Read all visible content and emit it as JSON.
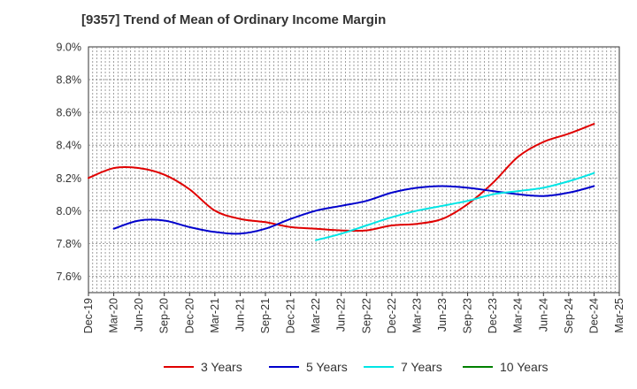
{
  "chart_data": {
    "type": "line",
    "title": "[9357]  Trend of Mean of Ordinary Income Margin",
    "ylim": [
      7.5,
      9.0
    ],
    "y_ticks": [
      "7.6%",
      "7.8%",
      "8.0%",
      "8.2%",
      "8.4%",
      "8.6%",
      "8.8%",
      "9.0%"
    ],
    "y_tick_values": [
      7.6,
      7.8,
      8.0,
      8.2,
      8.4,
      8.6,
      8.8,
      9.0
    ],
    "x_ticks": [
      "Dec-19",
      "Mar-20",
      "Jun-20",
      "Sep-20",
      "Dec-20",
      "Mar-21",
      "Jun-21",
      "Sep-21",
      "Dec-21",
      "Mar-22",
      "Jun-22",
      "Sep-22",
      "Dec-22",
      "Mar-23",
      "Jun-23",
      "Sep-23",
      "Dec-23",
      "Mar-24",
      "Jun-24",
      "Sep-24",
      "Dec-24",
      "Mar-25"
    ],
    "grid": true,
    "legend_position": "bottom",
    "series": [
      {
        "name": "3 Years",
        "color": "#e00000",
        "values": [
          {
            "x": "Dec-19",
            "y": 8.2
          },
          {
            "x": "Mar-20",
            "y": 8.26
          },
          {
            "x": "Jun-20",
            "y": 8.26
          },
          {
            "x": "Sep-20",
            "y": 8.22
          },
          {
            "x": "Dec-20",
            "y": 8.13
          },
          {
            "x": "Mar-21",
            "y": 8.0
          },
          {
            "x": "Jun-21",
            "y": 7.95
          },
          {
            "x": "Sep-21",
            "y": 7.93
          },
          {
            "x": "Dec-21",
            "y": 7.9
          },
          {
            "x": "Mar-22",
            "y": 7.89
          },
          {
            "x": "Jun-22",
            "y": 7.88
          },
          {
            "x": "Sep-22",
            "y": 7.88
          },
          {
            "x": "Dec-22",
            "y": 7.91
          },
          {
            "x": "Mar-23",
            "y": 7.92
          },
          {
            "x": "Jun-23",
            "y": 7.95
          },
          {
            "x": "Sep-23",
            "y": 8.04
          },
          {
            "x": "Dec-23",
            "y": 8.17
          },
          {
            "x": "Mar-24",
            "y": 8.33
          },
          {
            "x": "Jun-24",
            "y": 8.42
          },
          {
            "x": "Sep-24",
            "y": 8.47
          },
          {
            "x": "Dec-24",
            "y": 8.53
          }
        ]
      },
      {
        "name": "5 Years",
        "color": "#0000cc",
        "values": [
          {
            "x": "Mar-20",
            "y": 7.89
          },
          {
            "x": "Jun-20",
            "y": 7.94
          },
          {
            "x": "Sep-20",
            "y": 7.94
          },
          {
            "x": "Dec-20",
            "y": 7.9
          },
          {
            "x": "Mar-21",
            "y": 7.87
          },
          {
            "x": "Jun-21",
            "y": 7.86
          },
          {
            "x": "Sep-21",
            "y": 7.89
          },
          {
            "x": "Dec-21",
            "y": 7.95
          },
          {
            "x": "Mar-22",
            "y": 8.0
          },
          {
            "x": "Jun-22",
            "y": 8.03
          },
          {
            "x": "Sep-22",
            "y": 8.06
          },
          {
            "x": "Dec-22",
            "y": 8.11
          },
          {
            "x": "Mar-23",
            "y": 8.14
          },
          {
            "x": "Jun-23",
            "y": 8.15
          },
          {
            "x": "Sep-23",
            "y": 8.14
          },
          {
            "x": "Dec-23",
            "y": 8.12
          },
          {
            "x": "Mar-24",
            "y": 8.1
          },
          {
            "x": "Jun-24",
            "y": 8.09
          },
          {
            "x": "Sep-24",
            "y": 8.11
          },
          {
            "x": "Dec-24",
            "y": 8.15
          }
        ]
      },
      {
        "name": "7 Years",
        "color": "#00e5e5",
        "values": [
          {
            "x": "Mar-22",
            "y": 7.82
          },
          {
            "x": "Jun-22",
            "y": 7.86
          },
          {
            "x": "Sep-22",
            "y": 7.91
          },
          {
            "x": "Dec-22",
            "y": 7.96
          },
          {
            "x": "Mar-23",
            "y": 8.0
          },
          {
            "x": "Jun-23",
            "y": 8.03
          },
          {
            "x": "Sep-23",
            "y": 8.06
          },
          {
            "x": "Dec-23",
            "y": 8.1
          },
          {
            "x": "Mar-24",
            "y": 8.12
          },
          {
            "x": "Jun-24",
            "y": 8.14
          },
          {
            "x": "Sep-24",
            "y": 8.18
          },
          {
            "x": "Dec-24",
            "y": 8.23
          }
        ]
      },
      {
        "name": "10 Years",
        "color": "#008000",
        "values": []
      }
    ]
  }
}
